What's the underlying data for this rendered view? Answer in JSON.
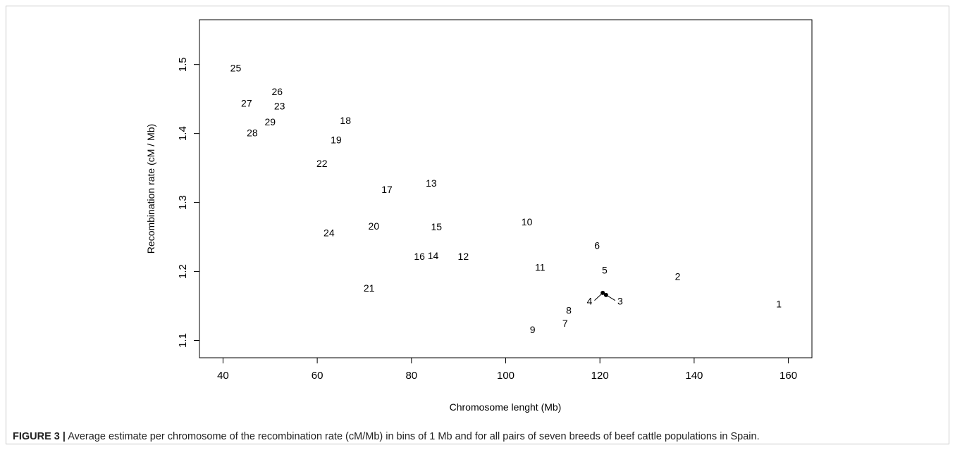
{
  "caption": {
    "label": "FIGURE 3 |",
    "text": "Average estimate per chromosome of the recombination rate (cM/Mb) in bins of 1 Mb and for all pairs of seven breeds of beef cattle populations in Spain."
  },
  "chart_data": {
    "type": "scatter",
    "title": "",
    "xlabel": "Chromosome lenght (Mb)",
    "ylabel": "Recombination rate (cM / Mb)",
    "xlim": [
      35,
      165
    ],
    "ylim": [
      1.075,
      1.565
    ],
    "xticks": [
      "40",
      "60",
      "80",
      "100",
      "120",
      "140",
      "160"
    ],
    "yticks": [
      "1.1",
      "1.2",
      "1.3",
      "1.4",
      "1.5"
    ],
    "xtick_values": [
      40,
      60,
      80,
      100,
      120,
      140,
      160
    ],
    "ytick_values": [
      1.1,
      1.2,
      1.3,
      1.4,
      1.5
    ],
    "grid": false,
    "legend": "none",
    "points": [
      {
        "label": "1",
        "x": 158.0,
        "y": 1.153
      },
      {
        "label": "2",
        "x": 136.5,
        "y": 1.193
      },
      {
        "label": "3",
        "x": 121.3,
        "y": 1.166
      },
      {
        "label": "4",
        "x": 120.6,
        "y": 1.169
      },
      {
        "label": "5",
        "x": 121.0,
        "y": 1.202
      },
      {
        "label": "6",
        "x": 119.4,
        "y": 1.238
      },
      {
        "label": "7",
        "x": 112.6,
        "y": 1.125
      },
      {
        "label": "8",
        "x": 113.4,
        "y": 1.144
      },
      {
        "label": "9",
        "x": 105.7,
        "y": 1.116
      },
      {
        "label": "10",
        "x": 104.5,
        "y": 1.272
      },
      {
        "label": "11",
        "x": 107.3,
        "y": 1.206
      },
      {
        "label": "12",
        "x": 91.0,
        "y": 1.222
      },
      {
        "label": "13",
        "x": 84.2,
        "y": 1.328
      },
      {
        "label": "14",
        "x": 84.6,
        "y": 1.223
      },
      {
        "label": "15",
        "x": 85.3,
        "y": 1.265
      },
      {
        "label": "16",
        "x": 81.7,
        "y": 1.222
      },
      {
        "label": "17",
        "x": 74.8,
        "y": 1.319
      },
      {
        "label": "18",
        "x": 66.0,
        "y": 1.419
      },
      {
        "label": "19",
        "x": 64.0,
        "y": 1.391
      },
      {
        "label": "20",
        "x": 72.0,
        "y": 1.266
      },
      {
        "label": "21",
        "x": 71.0,
        "y": 1.176
      },
      {
        "label": "22",
        "x": 61.0,
        "y": 1.357
      },
      {
        "label": "23",
        "x": 52.0,
        "y": 1.44
      },
      {
        "label": "24",
        "x": 62.5,
        "y": 1.256
      },
      {
        "label": "25",
        "x": 42.7,
        "y": 1.495
      },
      {
        "label": "26",
        "x": 51.5,
        "y": 1.461
      },
      {
        "label": "27",
        "x": 45.0,
        "y": 1.444
      },
      {
        "label": "28",
        "x": 46.2,
        "y": 1.401
      },
      {
        "label": "29",
        "x": 50.0,
        "y": 1.417
      }
    ],
    "annotations": {
      "callout_labels": [
        {
          "label": "4",
          "x": 117.8,
          "y": 1.157
        },
        {
          "label": "3",
          "x": 124.3,
          "y": 1.157
        }
      ]
    }
  }
}
